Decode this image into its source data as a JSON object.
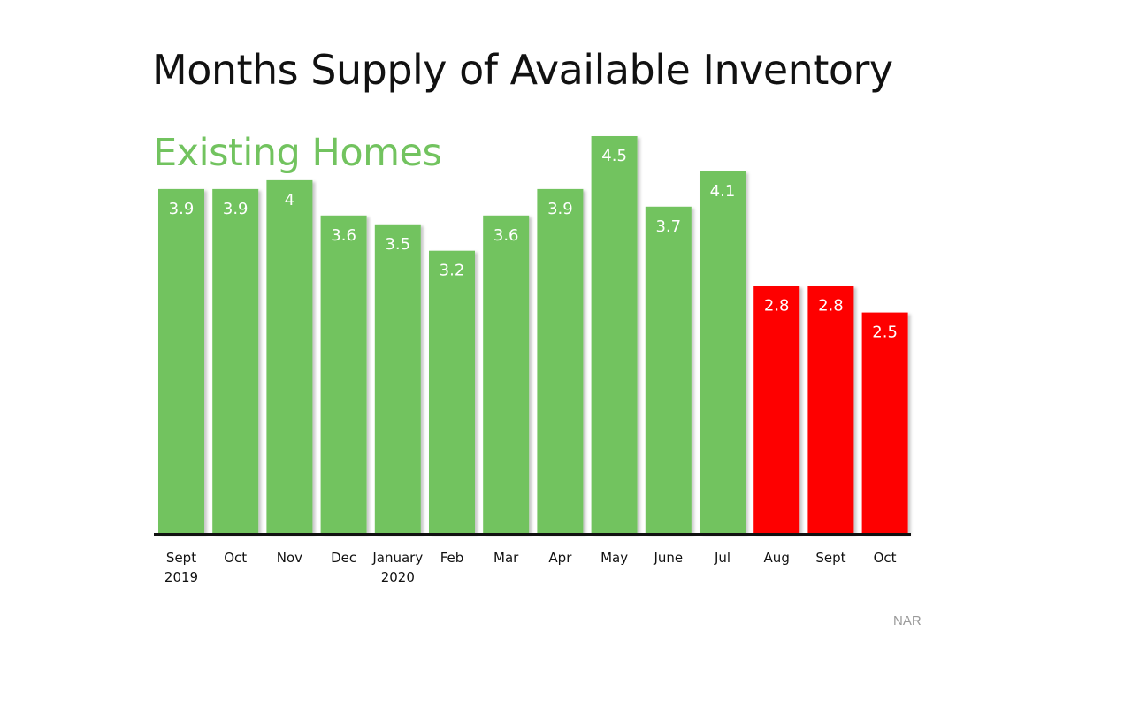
{
  "chart_data": {
    "type": "bar",
    "title": "Months Supply of Available Inventory",
    "subtitle": "Existing Homes",
    "source": "NAR",
    "categories": [
      [
        "Sept",
        "2019"
      ],
      [
        "Oct"
      ],
      [
        "Nov"
      ],
      [
        "Dec"
      ],
      [
        "January",
        "2020"
      ],
      [
        "Feb"
      ],
      [
        "Mar"
      ],
      [
        "Apr"
      ],
      [
        "May"
      ],
      [
        "June"
      ],
      [
        "Jul"
      ],
      [
        "Aug"
      ],
      [
        "Sept"
      ],
      [
        "Oct"
      ]
    ],
    "values": [
      3.9,
      3.9,
      4,
      3.6,
      3.5,
      3.2,
      3.6,
      3.9,
      4.5,
      3.7,
      4.1,
      2.8,
      2.8,
      2.5
    ],
    "value_labels": [
      "3.9",
      "3.9",
      "4",
      "3.6",
      "3.5",
      "3.2",
      "3.6",
      "3.9",
      "4.5",
      "3.7",
      "4.1",
      "2.8",
      "2.8",
      "2.5"
    ],
    "bar_colors": [
      "green",
      "green",
      "green",
      "green",
      "green",
      "green",
      "green",
      "green",
      "green",
      "green",
      "green",
      "red",
      "red",
      "red"
    ],
    "ylim": [
      0,
      5
    ],
    "grid": false,
    "legend": "none"
  },
  "colors": {
    "green": "#72c35f",
    "red": "#fe0000",
    "subtitle": "#72c35f",
    "axis": "#111111",
    "bar_label": "#ffffff",
    "tick_label": "#111111",
    "source": "#9a9a9a"
  }
}
